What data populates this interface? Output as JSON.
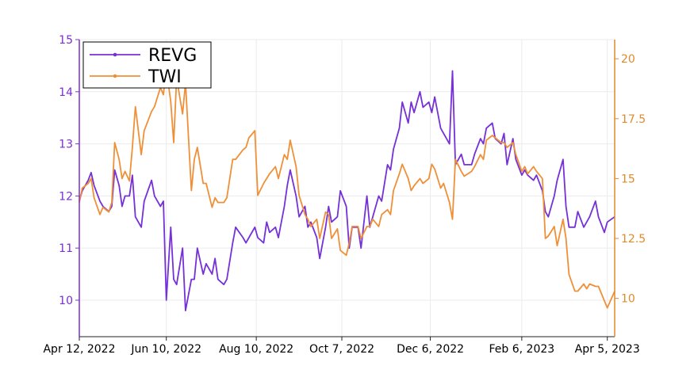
{
  "chart_data": {
    "type": "line",
    "grid": true,
    "legend_position": "top-left",
    "x_ticks": [
      "Apr 12, 2022",
      "Jun 10, 2022",
      "Aug 10, 2022",
      "Oct 7, 2022",
      "Dec 6, 2022",
      "Feb 6, 2023",
      "Apr 5, 2023"
    ],
    "x_range": [
      "2022-04-12",
      "2023-04-10"
    ],
    "y_left": {
      "ticks": [
        "10",
        "11",
        "12",
        "13",
        "14",
        "15"
      ],
      "range": [
        9.3,
        15
      ],
      "color": "#7b2fd0"
    },
    "y_right": {
      "ticks": [
        "10",
        "12.5",
        "15",
        "17.5",
        "20"
      ],
      "range": [
        8.4,
        20.8
      ],
      "color": "#e08a2a"
    },
    "series": [
      {
        "name": "REVG",
        "axis": "left",
        "color": "#7530d8",
        "points": [
          [
            "2022-04-12",
            11.9
          ],
          [
            "2022-04-14",
            12.1
          ],
          [
            "2022-04-18",
            12.3
          ],
          [
            "2022-04-20",
            12.45
          ],
          [
            "2022-04-22",
            12.2
          ],
          [
            "2022-04-26",
            11.9
          ],
          [
            "2022-04-28",
            11.8
          ],
          [
            "2022-05-02",
            11.7
          ],
          [
            "2022-05-04",
            11.8
          ],
          [
            "2022-05-06",
            12.5
          ],
          [
            "2022-05-09",
            12.2
          ],
          [
            "2022-05-11",
            11.8
          ],
          [
            "2022-05-13",
            12.0
          ],
          [
            "2022-05-16",
            12.0
          ],
          [
            "2022-05-18",
            12.4
          ],
          [
            "2022-05-20",
            11.6
          ],
          [
            "2022-05-24",
            11.4
          ],
          [
            "2022-05-26",
            11.9
          ],
          [
            "2022-05-31",
            12.3
          ],
          [
            "2022-06-02",
            12.0
          ],
          [
            "2022-06-06",
            11.8
          ],
          [
            "2022-06-08",
            11.9
          ],
          [
            "2022-06-10",
            10.0
          ],
          [
            "2022-06-13",
            11.4
          ],
          [
            "2022-06-15",
            10.4
          ],
          [
            "2022-06-17",
            10.3
          ],
          [
            "2022-06-21",
            11.0
          ],
          [
            "2022-06-23",
            9.8
          ],
          [
            "2022-06-27",
            10.4
          ],
          [
            "2022-06-29",
            10.4
          ],
          [
            "2022-07-01",
            11.0
          ],
          [
            "2022-07-05",
            10.5
          ],
          [
            "2022-07-07",
            10.7
          ],
          [
            "2022-07-11",
            10.5
          ],
          [
            "2022-07-13",
            10.8
          ],
          [
            "2022-07-15",
            10.4
          ],
          [
            "2022-07-19",
            10.3
          ],
          [
            "2022-07-21",
            10.4
          ],
          [
            "2022-07-25",
            11.1
          ],
          [
            "2022-07-27",
            11.4
          ],
          [
            "2022-08-01",
            11.2
          ],
          [
            "2022-08-03",
            11.1
          ],
          [
            "2022-08-05",
            11.2
          ],
          [
            "2022-08-09",
            11.4
          ],
          [
            "2022-08-11",
            11.2
          ],
          [
            "2022-08-15",
            11.1
          ],
          [
            "2022-08-17",
            11.5
          ],
          [
            "2022-08-19",
            11.3
          ],
          [
            "2022-08-23",
            11.4
          ],
          [
            "2022-08-25",
            11.2
          ],
          [
            "2022-08-29",
            11.8
          ],
          [
            "2022-08-31",
            12.2
          ],
          [
            "2022-09-02",
            12.5
          ],
          [
            "2022-09-06",
            12.0
          ],
          [
            "2022-09-08",
            11.6
          ],
          [
            "2022-09-12",
            11.8
          ],
          [
            "2022-09-14",
            11.4
          ],
          [
            "2022-09-16",
            11.5
          ],
          [
            "2022-09-20",
            11.2
          ],
          [
            "2022-09-22",
            10.8
          ],
          [
            "2022-09-26",
            11.4
          ],
          [
            "2022-09-28",
            11.8
          ],
          [
            "2022-09-30",
            11.5
          ],
          [
            "2022-10-04",
            11.6
          ],
          [
            "2022-10-06",
            12.1
          ],
          [
            "2022-10-10",
            11.8
          ],
          [
            "2022-10-12",
            11.0
          ],
          [
            "2022-10-14",
            11.4
          ],
          [
            "2022-10-18",
            11.4
          ],
          [
            "2022-10-20",
            11.0
          ],
          [
            "2022-10-24",
            12.0
          ],
          [
            "2022-10-26",
            11.4
          ],
          [
            "2022-10-28",
            11.6
          ],
          [
            "2022-11-01",
            12.0
          ],
          [
            "2022-11-03",
            11.9
          ],
          [
            "2022-11-07",
            12.6
          ],
          [
            "2022-11-09",
            12.5
          ],
          [
            "2022-11-11",
            12.9
          ],
          [
            "2022-11-15",
            13.3
          ],
          [
            "2022-11-17",
            13.8
          ],
          [
            "2022-11-21",
            13.4
          ],
          [
            "2022-11-23",
            13.8
          ],
          [
            "2022-11-25",
            13.6
          ],
          [
            "2022-11-29",
            14.0
          ],
          [
            "2022-12-01",
            13.7
          ],
          [
            "2022-12-05",
            13.8
          ],
          [
            "2022-12-07",
            13.6
          ],
          [
            "2022-12-09",
            13.9
          ],
          [
            "2022-12-13",
            13.3
          ],
          [
            "2022-12-15",
            13.2
          ],
          [
            "2022-12-19",
            13.0
          ],
          [
            "2022-12-21",
            14.4
          ],
          [
            "2022-12-23",
            12.6
          ],
          [
            "2022-12-27",
            12.8
          ],
          [
            "2022-12-29",
            12.6
          ],
          [
            "2023-01-03",
            12.6
          ],
          [
            "2023-01-05",
            12.8
          ],
          [
            "2023-01-09",
            13.1
          ],
          [
            "2023-01-11",
            13.0
          ],
          [
            "2023-01-13",
            13.3
          ],
          [
            "2023-01-17",
            13.4
          ],
          [
            "2023-01-19",
            13.1
          ],
          [
            "2023-01-23",
            13.0
          ],
          [
            "2023-01-25",
            13.2
          ],
          [
            "2023-01-27",
            12.6
          ],
          [
            "2023-01-31",
            13.1
          ],
          [
            "2023-02-02",
            12.7
          ],
          [
            "2023-02-06",
            12.4
          ],
          [
            "2023-02-08",
            12.5
          ],
          [
            "2023-02-10",
            12.4
          ],
          [
            "2023-02-14",
            12.3
          ],
          [
            "2023-02-16",
            12.4
          ],
          [
            "2023-02-20",
            12.1
          ],
          [
            "2023-02-22",
            11.7
          ],
          [
            "2023-02-24",
            11.6
          ],
          [
            "2023-02-28",
            12.0
          ],
          [
            "2023-03-02",
            12.3
          ],
          [
            "2023-03-06",
            12.7
          ],
          [
            "2023-03-08",
            11.8
          ],
          [
            "2023-03-10",
            11.4
          ],
          [
            "2023-03-14",
            11.4
          ],
          [
            "2023-03-16",
            11.7
          ],
          [
            "2023-03-20",
            11.4
          ],
          [
            "2023-03-22",
            11.5
          ],
          [
            "2023-03-24",
            11.6
          ],
          [
            "2023-03-28",
            11.9
          ],
          [
            "2023-03-30",
            11.6
          ],
          [
            "2023-04-03",
            11.3
          ],
          [
            "2023-04-05",
            11.5
          ],
          [
            "2023-04-10",
            11.6
          ]
        ]
      },
      {
        "name": "TWI",
        "axis": "right",
        "color": "#ef9038",
        "points": [
          [
            "2022-04-12",
            14.0
          ],
          [
            "2022-04-14",
            14.6
          ],
          [
            "2022-04-18",
            14.8
          ],
          [
            "2022-04-20",
            15.0
          ],
          [
            "2022-04-22",
            14.2
          ],
          [
            "2022-04-26",
            13.5
          ],
          [
            "2022-04-28",
            13.8
          ],
          [
            "2022-05-02",
            13.6
          ],
          [
            "2022-05-04",
            14.0
          ],
          [
            "2022-05-06",
            16.5
          ],
          [
            "2022-05-09",
            15.8
          ],
          [
            "2022-05-11",
            15.0
          ],
          [
            "2022-05-13",
            15.3
          ],
          [
            "2022-05-16",
            14.9
          ],
          [
            "2022-05-18",
            16.3
          ],
          [
            "2022-05-20",
            18.0
          ],
          [
            "2022-05-24",
            16.0
          ],
          [
            "2022-05-26",
            17.0
          ],
          [
            "2022-05-31",
            17.8
          ],
          [
            "2022-06-02",
            18.0
          ],
          [
            "2022-06-06",
            18.8
          ],
          [
            "2022-06-08",
            18.5
          ],
          [
            "2022-06-10",
            19.6
          ],
          [
            "2022-06-13",
            18.2
          ],
          [
            "2022-06-15",
            16.5
          ],
          [
            "2022-06-17",
            19.2
          ],
          [
            "2022-06-21",
            17.7
          ],
          [
            "2022-06-23",
            19.0
          ],
          [
            "2022-06-27",
            14.5
          ],
          [
            "2022-06-29",
            15.8
          ],
          [
            "2022-07-01",
            16.3
          ],
          [
            "2022-07-05",
            14.8
          ],
          [
            "2022-07-07",
            14.8
          ],
          [
            "2022-07-11",
            13.8
          ],
          [
            "2022-07-13",
            14.2
          ],
          [
            "2022-07-15",
            14.0
          ],
          [
            "2022-07-19",
            14.0
          ],
          [
            "2022-07-21",
            14.2
          ],
          [
            "2022-07-25",
            15.8
          ],
          [
            "2022-07-27",
            15.8
          ],
          [
            "2022-08-01",
            16.2
          ],
          [
            "2022-08-03",
            16.3
          ],
          [
            "2022-08-05",
            16.7
          ],
          [
            "2022-08-09",
            17.0
          ],
          [
            "2022-08-11",
            14.3
          ],
          [
            "2022-08-15",
            14.8
          ],
          [
            "2022-08-17",
            15.0
          ],
          [
            "2022-08-19",
            15.2
          ],
          [
            "2022-08-23",
            15.5
          ],
          [
            "2022-08-25",
            15.0
          ],
          [
            "2022-08-29",
            16.0
          ],
          [
            "2022-08-31",
            15.8
          ],
          [
            "2022-09-02",
            16.6
          ],
          [
            "2022-09-06",
            15.5
          ],
          [
            "2022-09-08",
            14.3
          ],
          [
            "2022-09-12",
            13.5
          ],
          [
            "2022-09-14",
            13.3
          ],
          [
            "2022-09-16",
            13.0
          ],
          [
            "2022-09-20",
            13.3
          ],
          [
            "2022-09-22",
            12.5
          ],
          [
            "2022-09-26",
            13.6
          ],
          [
            "2022-09-28",
            13.5
          ],
          [
            "2022-09-30",
            12.5
          ],
          [
            "2022-10-04",
            12.9
          ],
          [
            "2022-10-06",
            12.0
          ],
          [
            "2022-10-10",
            11.8
          ],
          [
            "2022-10-12",
            12.3
          ],
          [
            "2022-10-14",
            13.0
          ],
          [
            "2022-10-18",
            13.0
          ],
          [
            "2022-10-20",
            12.5
          ],
          [
            "2022-10-24",
            13.0
          ],
          [
            "2022-10-26",
            13.0
          ],
          [
            "2022-10-28",
            13.3
          ],
          [
            "2022-11-01",
            13.0
          ],
          [
            "2022-11-03",
            13.5
          ],
          [
            "2022-11-07",
            13.7
          ],
          [
            "2022-11-09",
            13.5
          ],
          [
            "2022-11-11",
            14.5
          ],
          [
            "2022-11-15",
            15.2
          ],
          [
            "2022-11-17",
            15.6
          ],
          [
            "2022-11-21",
            15.0
          ],
          [
            "2022-11-23",
            14.5
          ],
          [
            "2022-11-25",
            14.7
          ],
          [
            "2022-11-29",
            15.0
          ],
          [
            "2022-12-01",
            14.8
          ],
          [
            "2022-12-05",
            15.0
          ],
          [
            "2022-12-07",
            15.6
          ],
          [
            "2022-12-09",
            15.4
          ],
          [
            "2022-12-13",
            14.6
          ],
          [
            "2022-12-15",
            14.8
          ],
          [
            "2022-12-19",
            14.0
          ],
          [
            "2022-12-21",
            13.3
          ],
          [
            "2022-12-23",
            15.8
          ],
          [
            "2022-12-27",
            15.3
          ],
          [
            "2022-12-29",
            15.1
          ],
          [
            "2023-01-03",
            15.3
          ],
          [
            "2023-01-05",
            15.5
          ],
          [
            "2023-01-09",
            16.0
          ],
          [
            "2023-01-11",
            15.8
          ],
          [
            "2023-01-13",
            16.6
          ],
          [
            "2023-01-17",
            16.8
          ],
          [
            "2023-01-19",
            16.7
          ],
          [
            "2023-01-23",
            16.5
          ],
          [
            "2023-01-25",
            16.5
          ],
          [
            "2023-01-27",
            16.3
          ],
          [
            "2023-01-31",
            16.5
          ],
          [
            "2023-02-02",
            16.0
          ],
          [
            "2023-02-06",
            15.3
          ],
          [
            "2023-02-08",
            15.5
          ],
          [
            "2023-02-10",
            15.2
          ],
          [
            "2023-02-14",
            15.5
          ],
          [
            "2023-02-16",
            15.3
          ],
          [
            "2023-02-20",
            15.0
          ],
          [
            "2023-02-22",
            12.5
          ],
          [
            "2023-02-24",
            12.6
          ],
          [
            "2023-02-28",
            13.0
          ],
          [
            "2023-03-02",
            12.2
          ],
          [
            "2023-03-06",
            13.3
          ],
          [
            "2023-03-08",
            12.5
          ],
          [
            "2023-03-10",
            11.0
          ],
          [
            "2023-03-14",
            10.3
          ],
          [
            "2023-03-16",
            10.3
          ],
          [
            "2023-03-20",
            10.6
          ],
          [
            "2023-03-22",
            10.4
          ],
          [
            "2023-03-24",
            10.6
          ],
          [
            "2023-03-28",
            10.5
          ],
          [
            "2023-03-30",
            10.5
          ],
          [
            "2023-04-03",
            9.9
          ],
          [
            "2023-04-05",
            9.6
          ],
          [
            "2023-04-10",
            10.3
          ]
        ]
      }
    ]
  }
}
